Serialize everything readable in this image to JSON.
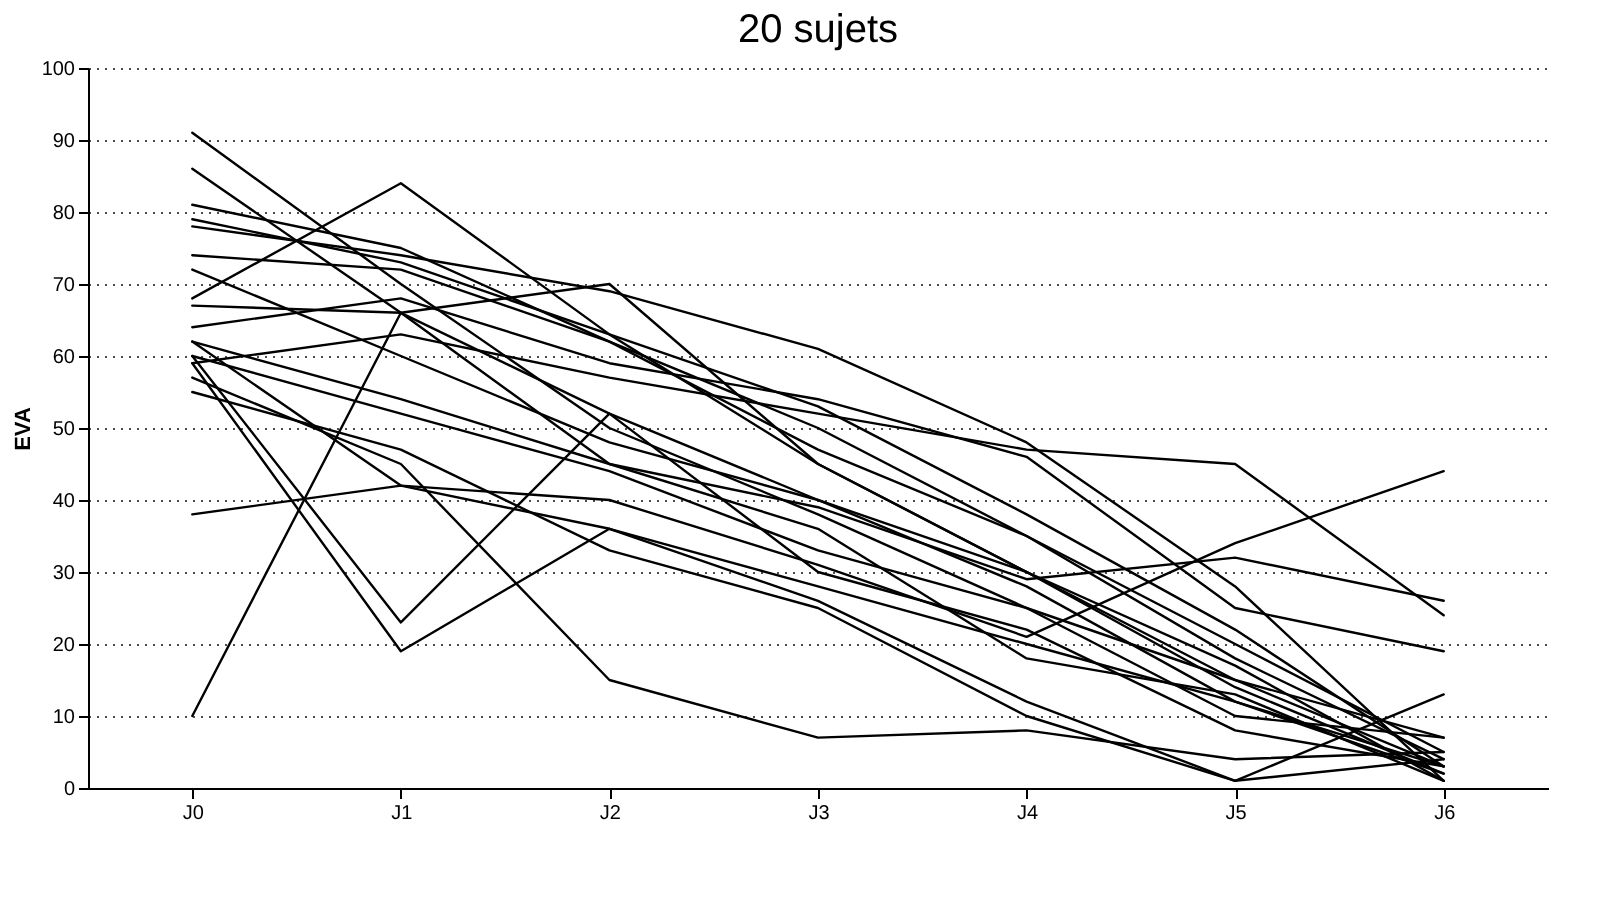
{
  "chart_data": {
    "type": "line",
    "title": "20 sujets",
    "ylabel": "EVA",
    "categories": [
      "J0",
      "J1",
      "J2",
      "J3",
      "J4",
      "J5",
      "J6"
    ],
    "series": [
      {
        "color": "#000000",
        "values": [
          91,
          70,
          50,
          38,
          25,
          15,
          3
        ]
      },
      {
        "color": "#000000",
        "values": [
          86,
          66,
          52,
          40,
          28,
          12,
          2
        ]
      },
      {
        "color": "#000000",
        "values": [
          81,
          75,
          62,
          50,
          35,
          20,
          5
        ]
      },
      {
        "color": "#000000",
        "values": [
          79,
          73,
          63,
          53,
          38,
          22,
          3
        ]
      },
      {
        "color": "#000000",
        "values": [
          78,
          74,
          69,
          61,
          48,
          28,
          1
        ]
      },
      {
        "color": "#000000",
        "values": [
          74,
          72,
          62,
          47,
          35,
          18,
          4
        ]
      },
      {
        "color": "#000000",
        "values": [
          72,
          60,
          48,
          40,
          30,
          14,
          2
        ]
      },
      {
        "color": "#000000",
        "values": [
          68,
          84,
          63,
          45,
          30,
          15,
          7
        ]
      },
      {
        "color": "#000000",
        "values": [
          67,
          66,
          70,
          45,
          30,
          17,
          1
        ]
      },
      {
        "color": "#000000",
        "values": [
          64,
          68,
          59,
          54,
          46,
          25,
          19
        ]
      },
      {
        "color": "#000000",
        "values": [
          62,
          54,
          45,
          39,
          29,
          32,
          26
        ]
      },
      {
        "color": "#000000",
        "values": [
          60,
          52,
          44,
          33,
          25,
          10,
          7
        ]
      },
      {
        "color": "#000000",
        "values": [
          59,
          19,
          36,
          28,
          20,
          12,
          3
        ]
      },
      {
        "color": "#000000",
        "values": [
          59,
          63,
          57,
          52,
          47,
          45,
          24
        ]
      },
      {
        "color": "#000000",
        "values": [
          38,
          42,
          40,
          31,
          21,
          34,
          44
        ]
      },
      {
        "color": "#000000",
        "values": [
          10,
          66,
          45,
          36,
          18,
          13,
          1
        ]
      },
      {
        "color": "#000000",
        "values": [
          60,
          23,
          52,
          30,
          22,
          8,
          3
        ]
      },
      {
        "color": "#000000",
        "values": [
          57,
          45,
          15,
          7,
          8,
          4,
          5
        ]
      },
      {
        "color": "#000000",
        "values": [
          62,
          42,
          36,
          26,
          12,
          1,
          13
        ]
      },
      {
        "color": "#000000",
        "values": [
          55,
          47,
          33,
          25,
          10,
          1,
          4
        ]
      }
    ],
    "ylim": [
      0,
      100
    ],
    "yticks": [
      0,
      10,
      20,
      30,
      40,
      50,
      60,
      70,
      80,
      90,
      100
    ],
    "grid": "y",
    "legend": false,
    "marker": "none",
    "line_style": "solid"
  }
}
